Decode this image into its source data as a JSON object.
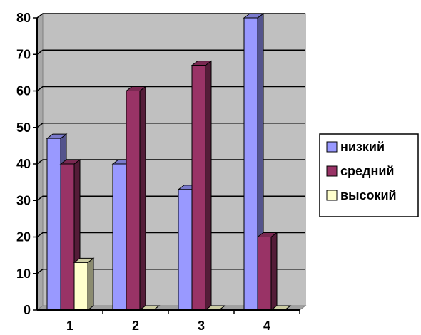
{
  "chart_data": {
    "type": "bar",
    "title": "",
    "xlabel": "",
    "ylabel": "",
    "categories": [
      "1",
      "2",
      "3",
      "4"
    ],
    "series": [
      {
        "name": "низкий",
        "values": [
          47,
          40,
          33,
          80
        ],
        "color": "#9999FF"
      },
      {
        "name": "средний",
        "values": [
          40,
          60,
          67,
          20
        ],
        "color": "#993366"
      },
      {
        "name": "высокий",
        "values": [
          13,
          0,
          0,
          0
        ],
        "color": "#FFFFCC"
      }
    ],
    "ylim": [
      0,
      80
    ],
    "yticks": [
      0,
      10,
      20,
      30,
      40,
      50,
      60,
      70,
      80
    ],
    "grid": true,
    "legend_position": "right",
    "plot_background": "#C0C0C0",
    "style": "3d-clustered-column"
  }
}
